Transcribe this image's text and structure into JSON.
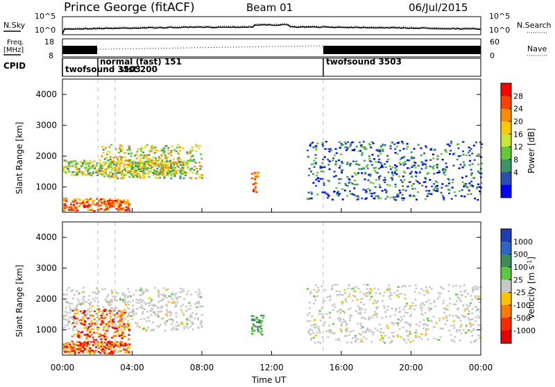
{
  "header": {
    "station": "Prince George (fitACF)",
    "beam": "Beam 01",
    "date": "06/Jul/2015"
  },
  "noise_panel": {
    "left_label": "N.Sky",
    "right_label": "N.Search",
    "left_ticks": [
      "10^5",
      "10^0"
    ],
    "right_ticks": [
      "10^5",
      "10^0"
    ]
  },
  "freq_panel": {
    "left_label_1": "Freq.",
    "left_label_2": "[MHz]",
    "left_ticks": [
      "18",
      "8"
    ],
    "right_ticks": [
      "60",
      "0"
    ],
    "right_label": "Nave"
  },
  "cpid": {
    "label": "CPID",
    "entries": [
      {
        "text": "twofsound 3503",
        "row": "lower"
      },
      {
        "text": "normal (fast) 151",
        "row": "upper"
      },
      {
        "text": "stst 200",
        "row": "lower"
      },
      {
        "text": "twofsound 3503",
        "row": "upper"
      }
    ]
  },
  "chart_data": [
    {
      "type": "heatmap",
      "title": "",
      "xlabel": "",
      "ylabel": "Slant Range [km]",
      "x_range_hours": [
        0,
        24
      ],
      "ylim": [
        180,
        4500
      ],
      "y_ticks": [
        1000,
        2000,
        3000,
        4000
      ],
      "colorbar": {
        "label": "Power [dB]",
        "ticks": [
          "28",
          "24",
          "20",
          "16",
          "12",
          "8",
          "4"
        ],
        "colors": [
          "#ff0000",
          "#ff4000",
          "#ff8c00",
          "#ffc800",
          "#c8e632",
          "#64c832",
          "#3c9664",
          "#2850b4",
          "#0000ff"
        ]
      },
      "features": [
        {
          "start_h": 0.0,
          "end_h": 3.8,
          "range_km": [
            250,
            650
          ],
          "level": "high"
        },
        {
          "start_h": 0.0,
          "end_h": 7.0,
          "range_km": [
            1400,
            1900
          ],
          "level": "medium"
        },
        {
          "start_h": 2.2,
          "end_h": 8.0,
          "range_km": [
            1300,
            2400
          ],
          "level": "medium"
        },
        {
          "start_h": 10.8,
          "end_h": 11.2,
          "range_km": [
            850,
            1500
          ],
          "level": "high"
        },
        {
          "start_h": 14.0,
          "end_h": 24.0,
          "range_km": [
            600,
            2500
          ],
          "level": "low"
        }
      ]
    },
    {
      "type": "heatmap",
      "title": "",
      "xlabel": "Time UT",
      "ylabel": "Slant Range [km]",
      "x_range_hours": [
        0,
        24
      ],
      "ylim": [
        180,
        4500
      ],
      "y_ticks": [
        1000,
        2000,
        3000,
        4000
      ],
      "x_ticks": [
        "00:00",
        "04:00",
        "08:00",
        "12:00",
        "16:00",
        "20:00",
        "00:00"
      ],
      "colorbar": {
        "label": "Velocity [m s^-1]",
        "ticks": [
          "1000",
          "500",
          "100",
          "25",
          "-25",
          "-100",
          "-500",
          "-1000"
        ],
        "colors": [
          "#1e3cb4",
          "#2d64c8",
          "#3c8c5a",
          "#5ac83c",
          "#c8c8c8",
          "#ffc000",
          "#ff7800",
          "#ff2800",
          "#e60000"
        ]
      },
      "features": [
        {
          "start_h": 0.0,
          "end_h": 3.8,
          "range_km": [
            250,
            650
          ],
          "velocity": "negative"
        },
        {
          "start_h": 0.0,
          "end_h": 8.0,
          "range_km": [
            1000,
            2400
          ],
          "velocity": "near-zero"
        },
        {
          "start_h": 0.5,
          "end_h": 3.8,
          "range_km": [
            700,
            1700
          ],
          "velocity": "negative"
        },
        {
          "start_h": 10.8,
          "end_h": 11.5,
          "range_km": [
            850,
            1500
          ],
          "velocity": "positive"
        },
        {
          "start_h": 14.0,
          "end_h": 24.0,
          "range_km": [
            600,
            2500
          ],
          "velocity": "near-zero"
        }
      ]
    }
  ]
}
